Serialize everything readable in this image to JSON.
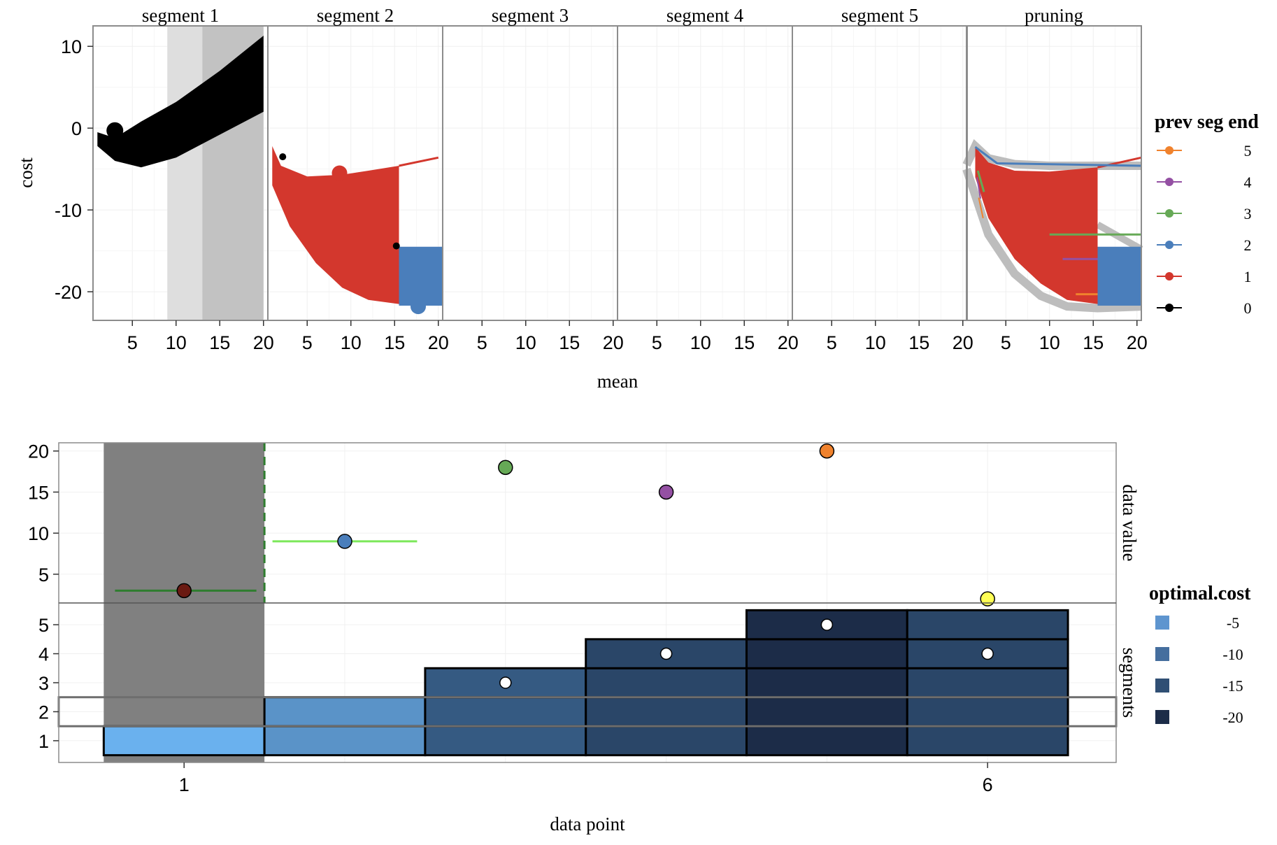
{
  "chart_data": [
    {
      "type": "line",
      "panels": [
        "segment 1",
        "segment 2",
        "segment 3",
        "segment 4",
        "segment 5",
        "pruning"
      ],
      "xlabel": "mean",
      "ylabel": "cost",
      "x_ticks": [
        5,
        10,
        15,
        20
      ],
      "x_tick_labels": [
        "5",
        "10",
        "15",
        "20"
      ],
      "y_ticks": [
        10,
        0,
        -10,
        -20
      ],
      "y_tick_labels": [
        "10",
        "0",
        "-10",
        "-20"
      ],
      "xlim": [
        0.5,
        20.5
      ],
      "ylim": [
        -23.5,
        12.5
      ],
      "grid": true,
      "legend": {
        "title": "prev seg end",
        "position": "right",
        "entries": [
          {
            "label": "5",
            "color": "#F0822D"
          },
          {
            "label": "4",
            "color": "#9450A3"
          },
          {
            "label": "3",
            "color": "#66A956"
          },
          {
            "label": "2",
            "color": "#4A7EBB"
          },
          {
            "label": "1",
            "color": "#D3372D"
          },
          {
            "label": "0",
            "color": "#000000"
          }
        ]
      },
      "segment1": {
        "shade_light": [
          9,
          13
        ],
        "shade_dark": [
          13,
          20
        ],
        "band_top": [
          [
            1,
            -0.5
          ],
          [
            3,
            -1.2
          ],
          [
            6,
            0.8
          ],
          [
            10,
            3.2
          ],
          [
            15,
            7.0
          ],
          [
            20,
            11.3
          ]
        ],
        "band_bottom": [
          [
            1,
            -2.2
          ],
          [
            3,
            -4.0
          ],
          [
            6,
            -4.8
          ],
          [
            10,
            -3.6
          ],
          [
            15,
            -0.8
          ],
          [
            20,
            2.0
          ]
        ],
        "min_point": {
          "x": 3,
          "y": -0.3
        }
      },
      "segment2": {
        "red_top": [
          [
            1,
            -2.2
          ],
          [
            2,
            -4.6
          ],
          [
            5,
            -5.9
          ],
          [
            9,
            -5.7
          ],
          [
            12,
            -5.2
          ],
          [
            15.5,
            -4.6
          ],
          [
            20,
            -3.6
          ]
        ],
        "red_bottom": [
          [
            1,
            -7.0
          ],
          [
            3,
            -12
          ],
          [
            6,
            -16.5
          ],
          [
            9,
            -19.5
          ],
          [
            12,
            -21.0
          ],
          [
            15.5,
            -21.5
          ]
        ],
        "blue_rect": {
          "x": [
            15.5,
            20.5
          ],
          "y": [
            -21.7,
            -14.5
          ]
        },
        "black_points": [
          {
            "x": 2.2,
            "y": -3.5
          },
          {
            "x": 15.2,
            "y": -14.4
          }
        ],
        "red_min": {
          "x": 8.7,
          "y": -5.5
        },
        "blue_min": {
          "x": 17.7,
          "y": -21.8
        }
      },
      "pruning": {
        "gray_top": [
          [
            0.5,
            -4.5
          ],
          [
            1.5,
            -2.2
          ],
          [
            3,
            -3.7
          ],
          [
            6,
            -4.4
          ],
          [
            10,
            -4.6
          ],
          [
            15,
            -4.6
          ],
          [
            20.5,
            -4.6
          ]
        ],
        "gray_bottom": [
          [
            0.5,
            -5.0
          ],
          [
            3,
            -13
          ],
          [
            6,
            -17.8
          ],
          [
            9,
            -20.5
          ],
          [
            12,
            -21.8
          ],
          [
            15.5,
            -22.0
          ],
          [
            20.5,
            -21.8
          ]
        ],
        "gray_outlier": [
          [
            15.5,
            -11.8
          ],
          [
            20.5,
            -14.8
          ]
        ],
        "red_top": [
          [
            1.5,
            -2.3
          ],
          [
            3,
            -4.2
          ],
          [
            6,
            -5.2
          ],
          [
            10,
            -5.3
          ],
          [
            15.5,
            -4.8
          ],
          [
            20.5,
            -3.6
          ]
        ],
        "red_bottom": [
          [
            1.5,
            -6.0
          ],
          [
            3,
            -11
          ],
          [
            6,
            -16
          ],
          [
            9,
            -19
          ],
          [
            12,
            -21
          ],
          [
            15.5,
            -21.5
          ]
        ],
        "blue_line": [
          [
            1.5,
            -2.3
          ],
          [
            4,
            -4.3
          ],
          [
            20.5,
            -4.6
          ]
        ],
        "blue_rect": {
          "x": [
            15.5,
            20.5
          ],
          "y": [
            -21.7,
            -14.5
          ]
        },
        "green_line": {
          "x": [
            10,
            20.5
          ],
          "y": -13.0
        },
        "purple_line": {
          "x": [
            11.5,
            15.5
          ],
          "y": -16.0
        },
        "orange_line": {
          "x": [
            13,
            15.5
          ],
          "y": -20.3
        }
      }
    },
    {
      "type": "scatter",
      "xlabel": "data point",
      "x_ticks": [
        1,
        6
      ],
      "x_tick_labels": [
        "1",
        "6"
      ],
      "xlim": [
        0.22,
        6.8
      ],
      "panels": [
        {
          "strip": "data value",
          "ylim": [
            1.5,
            21
          ],
          "y_ticks": [
            5,
            10,
            15,
            20
          ],
          "y_tick_labels": [
            "5",
            "10",
            "15",
            "20"
          ],
          "points": [
            {
              "x": 1,
              "y": 3,
              "color": "#6A1A12"
            },
            {
              "x": 2,
              "y": 9,
              "color": "#4A7EBB"
            },
            {
              "x": 3,
              "y": 18,
              "color": "#66A956"
            },
            {
              "x": 4,
              "y": 15,
              "color": "#9450A3"
            },
            {
              "x": 5,
              "y": 20,
              "color": "#F0822D"
            },
            {
              "x": 6,
              "y": 2,
              "color": "#FFFF55"
            }
          ],
          "mean_segments": [
            {
              "x": [
                0.57,
                1.45
              ],
              "y": 3,
              "color": "#2F7D2F"
            },
            {
              "x": [
                1.55,
                2.45
              ],
              "y": 9,
              "color": "#7CE85A"
            }
          ],
          "vline": {
            "x": 1.5,
            "color": "#2F7D2F",
            "dash": true
          }
        },
        {
          "strip": "segments",
          "ylim": [
            0.25,
            5.75
          ],
          "y_ticks": [
            1,
            2,
            3,
            4,
            5
          ],
          "y_tick_labels": [
            "1",
            "2",
            "3",
            "4",
            "5"
          ],
          "cells": [
            {
              "x": 1,
              "y": 1,
              "fill": "#6AB1EE"
            },
            {
              "x": 2,
              "y": 1,
              "fill": "#5A93C8"
            },
            {
              "x": 2,
              "y": 2,
              "fill": "#5A93C8"
            },
            {
              "x": 3,
              "y": 1,
              "fill": "#355A82"
            },
            {
              "x": 3,
              "y": 2,
              "fill": "#355A82"
            },
            {
              "x": 3,
              "y": 3,
              "fill": "#355A82"
            },
            {
              "x": 4,
              "y": 1,
              "fill": "#2A4668"
            },
            {
              "x": 4,
              "y": 2,
              "fill": "#2A4668"
            },
            {
              "x": 4,
              "y": 3,
              "fill": "#2A4668"
            },
            {
              "x": 4,
              "y": 4,
              "fill": "#2A4668"
            },
            {
              "x": 5,
              "y": 1,
              "fill": "#1C2C48"
            },
            {
              "x": 5,
              "y": 2,
              "fill": "#1C2C48"
            },
            {
              "x": 5,
              "y": 3,
              "fill": "#1C2C48"
            },
            {
              "x": 5,
              "y": 4,
              "fill": "#1C2C48"
            },
            {
              "x": 5,
              "y": 5,
              "fill": "#1C2C48"
            },
            {
              "x": 6,
              "y": 1,
              "fill": "#2A4668"
            },
            {
              "x": 6,
              "y": 2,
              "fill": "#2A4668"
            },
            {
              "x": 6,
              "y": 3,
              "fill": "#2A4668"
            },
            {
              "x": 6,
              "y": 4,
              "fill": "#2A4668"
            },
            {
              "x": 6,
              "y": 5,
              "fill": "#2A4668"
            }
          ],
          "optimal_points": [
            {
              "x": 3,
              "y": 3
            },
            {
              "x": 4,
              "y": 4
            },
            {
              "x": 5,
              "y": 5
            },
            {
              "x": 6,
              "y": 4
            }
          ],
          "highlight_row": 2
        }
      ],
      "highlight_region": {
        "x": [
          0.5,
          1.5
        ]
      },
      "legend": {
        "title": "optimal.cost",
        "position": "right",
        "entries": [
          {
            "label": "-5",
            "color": "#5E95CF"
          },
          {
            "label": "-10",
            "color": "#456E9E"
          },
          {
            "label": "-15",
            "color": "#304F74"
          },
          {
            "label": "-20",
            "color": "#1C2C48"
          }
        ]
      }
    }
  ]
}
